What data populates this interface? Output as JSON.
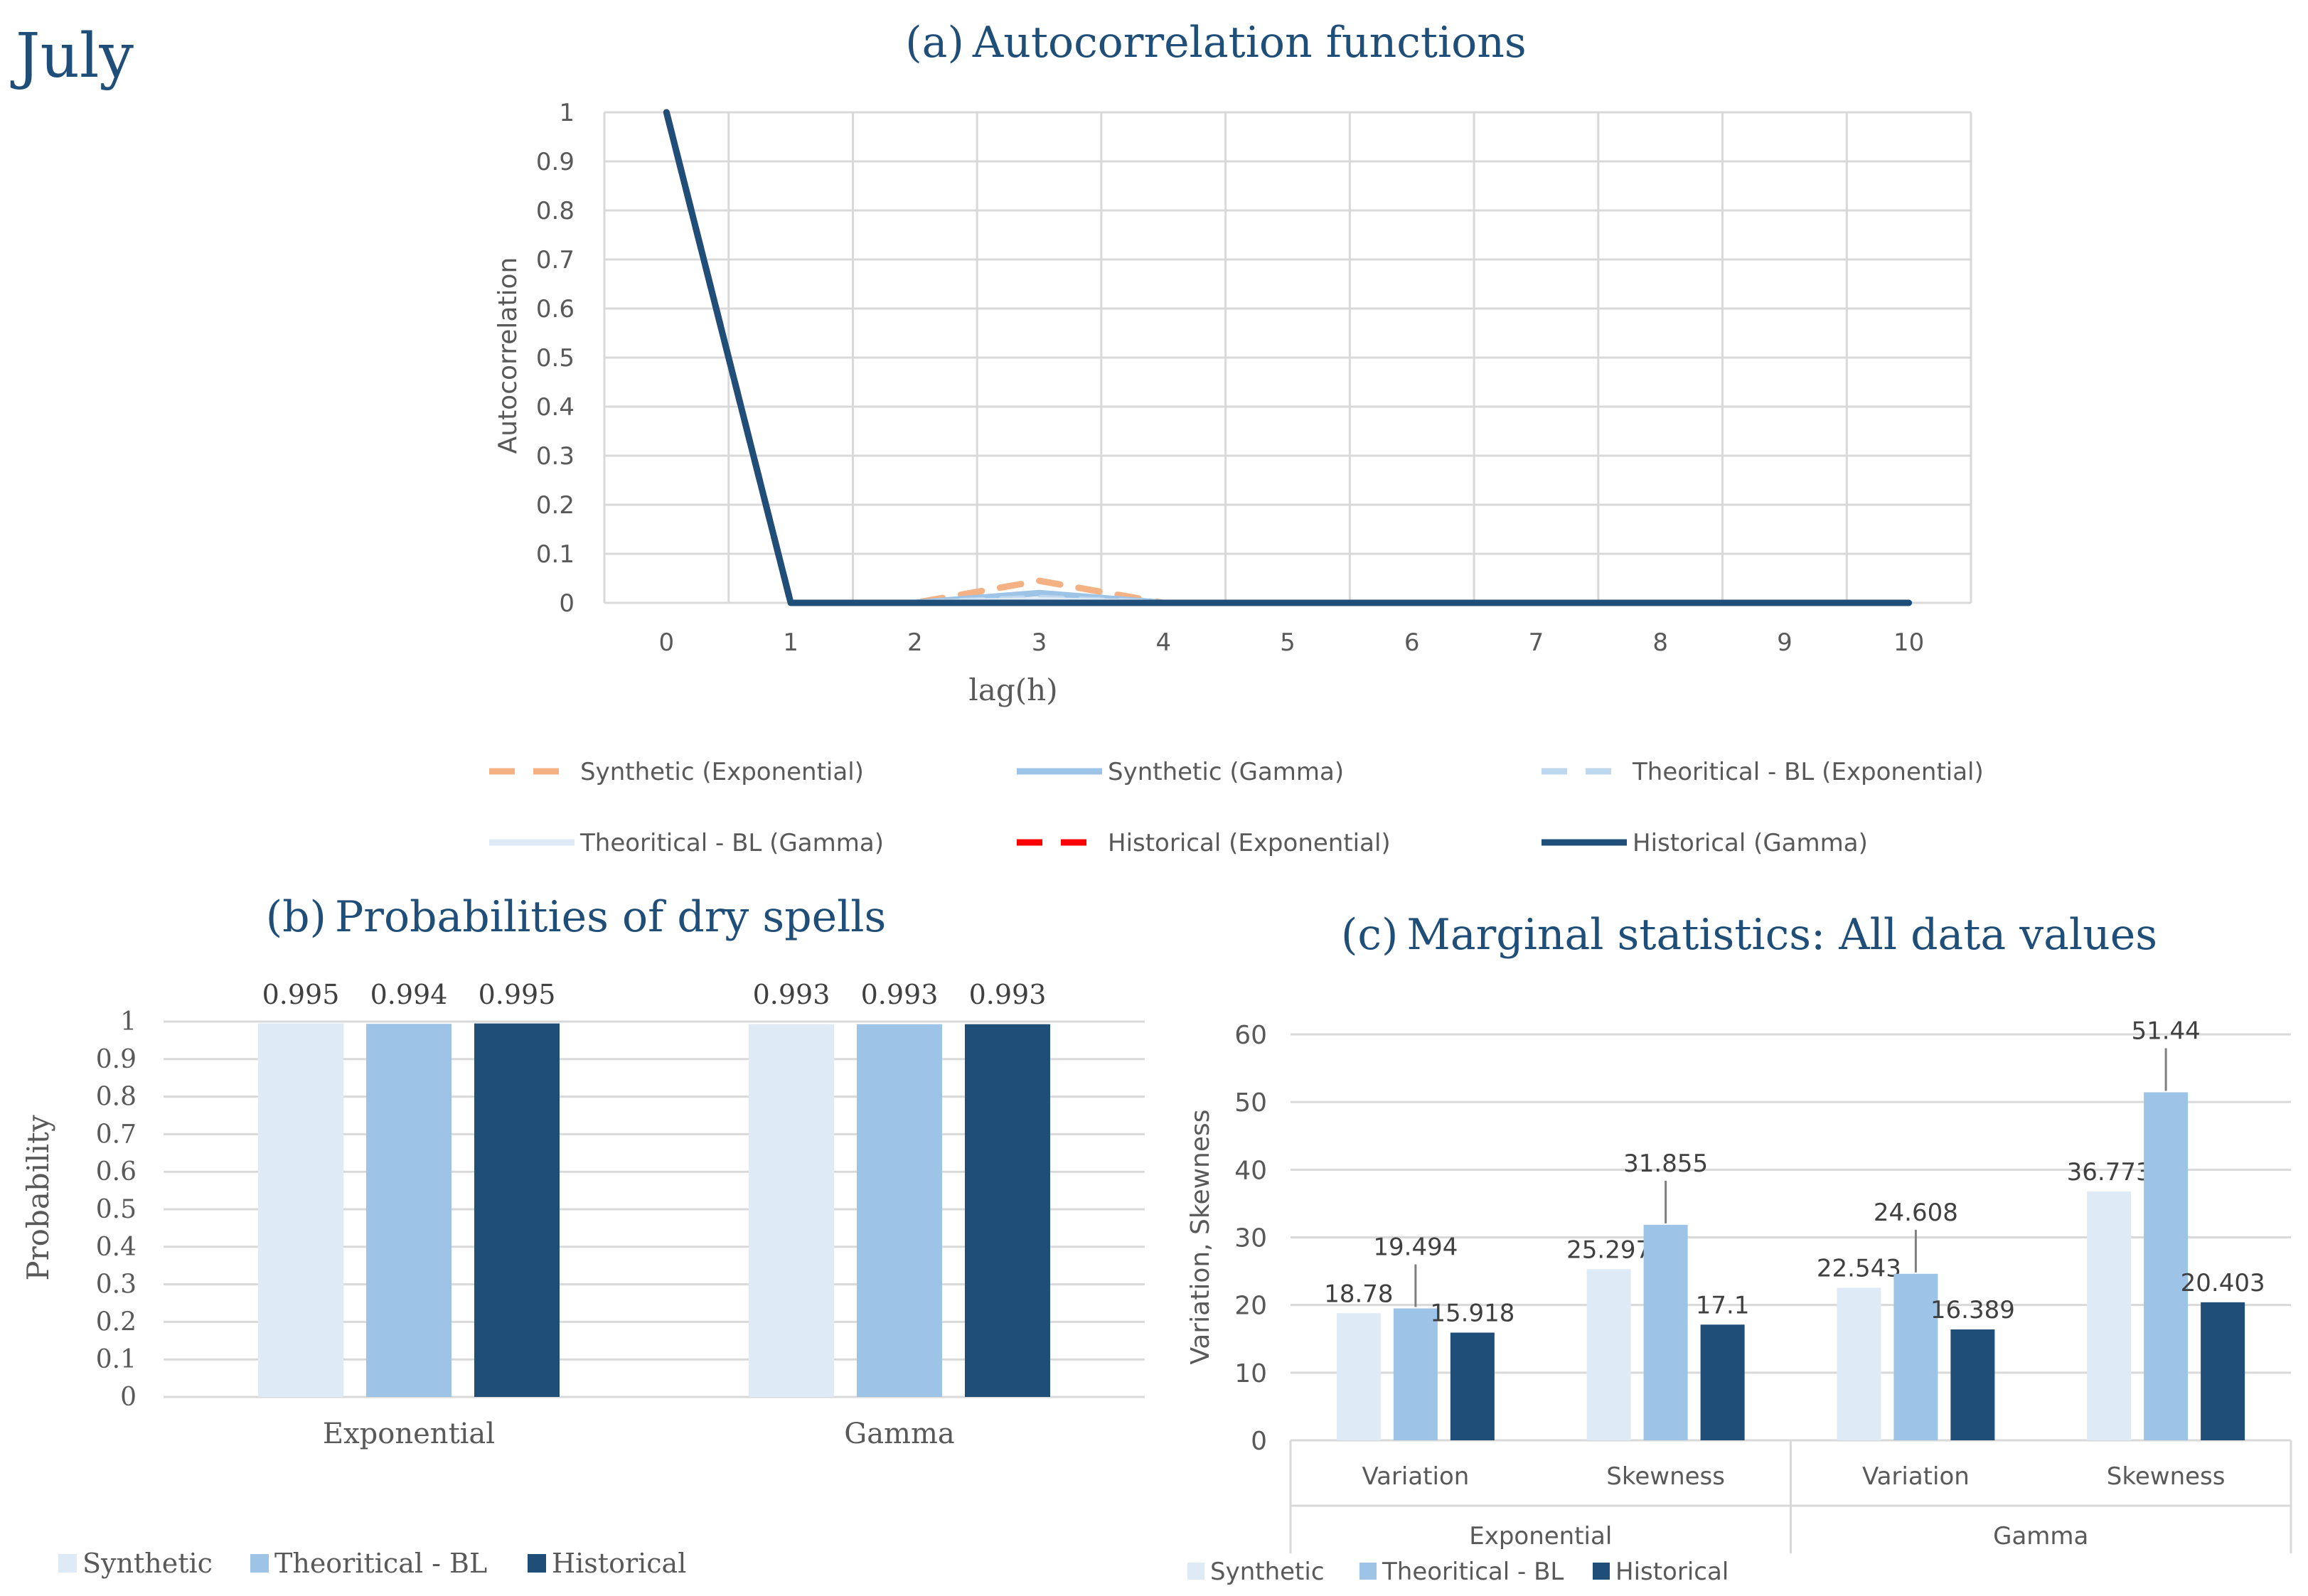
{
  "month_label": "July",
  "colors": {
    "title": "#1f4e79",
    "grid": "#d9d9d9",
    "axis_text": "#595959",
    "synthetic_exp": "#f4b183",
    "synthetic_gamma": "#9dc3e6",
    "theoretical_exp": "#bdd7ee",
    "theoretical_gamma": "#deebf7",
    "historical_exp": "#ff0000",
    "historical_gamma": "#1f4e79",
    "bar_synthetic": "#deebf7",
    "bar_theoretical": "#9dc3e6",
    "bar_historical": "#1f4e79"
  },
  "chart_data": [
    {
      "id": "a",
      "type": "line",
      "title_prefix": "(a)",
      "title": "Autocorrelation functions",
      "xlabel": "lag(h)",
      "ylabel": "Autocorrelation",
      "ylim": [
        0,
        1
      ],
      "yticks": [
        "0",
        "0.1",
        "0.2",
        "0.3",
        "0.4",
        "0.5",
        "0.6",
        "0.7",
        "0.8",
        "0.9",
        "1"
      ],
      "x": [
        0,
        1,
        2,
        3,
        4,
        5,
        6,
        7,
        8,
        9,
        10
      ],
      "grid": true,
      "legend_position": "bottom",
      "series": [
        {
          "name": "Synthetic (Exponential)",
          "style": "dashed",
          "color": "#f4b183",
          "values": [
            1,
            0,
            0,
            0.045,
            0,
            0,
            0,
            0,
            0,
            0,
            0
          ]
        },
        {
          "name": "Synthetic (Gamma)",
          "style": "solid",
          "color": "#9dc3e6",
          "values": [
            1,
            0,
            0,
            0.02,
            0,
            0,
            0,
            0,
            0,
            0,
            0
          ]
        },
        {
          "name": "Theoritical - BL (Exponential)",
          "style": "dashed",
          "color": "#bdd7ee",
          "values": [
            1,
            0,
            0,
            0.01,
            0,
            0,
            0,
            0,
            0,
            0,
            0
          ]
        },
        {
          "name": "Theoritical - BL (Gamma)",
          "style": "solid",
          "color": "#deebf7",
          "values": [
            1,
            0,
            0,
            0.005,
            0,
            0,
            0,
            0,
            0,
            0,
            0
          ]
        },
        {
          "name": "Historical (Exponential)",
          "style": "dashed",
          "color": "#ff0000",
          "values": [
            1,
            0,
            0,
            0,
            0,
            0,
            0,
            0,
            0,
            0,
            0
          ]
        },
        {
          "name": "Historical (Gamma)",
          "style": "solid",
          "color": "#1f4e79",
          "values": [
            1,
            0,
            0,
            0,
            0,
            0,
            0,
            0,
            0,
            0,
            0
          ]
        }
      ]
    },
    {
      "id": "b",
      "type": "bar",
      "title_prefix": "(b)",
      "title": "Probabilities of dry spells",
      "ylabel": "Probability",
      "ylim": [
        0,
        1
      ],
      "yticks": [
        "0",
        "0.1",
        "0.2",
        "0.3",
        "0.4",
        "0.5",
        "0.6",
        "0.7",
        "0.8",
        "0.9",
        "1"
      ],
      "categories": [
        "Exponential",
        "Gamma"
      ],
      "grid": true,
      "legend_position": "bottom",
      "series": [
        {
          "name": "Synthetic",
          "color": "#deebf7",
          "values": [
            0.995,
            0.993
          ],
          "labels": [
            "0.995",
            "0.993"
          ]
        },
        {
          "name": "Theoritical - BL",
          "color": "#9dc3e6",
          "values": [
            0.994,
            0.993
          ],
          "labels": [
            "0.994",
            "0.993"
          ]
        },
        {
          "name": "Historical",
          "color": "#1f4e79",
          "values": [
            0.995,
            0.993
          ],
          "labels": [
            "0.995",
            "0.993"
          ]
        }
      ]
    },
    {
      "id": "c",
      "type": "bar",
      "title_prefix": "(c)",
      "title": "Marginal statistics: All data values",
      "ylabel": "Variation, Skewness",
      "ylim": [
        0,
        60
      ],
      "yticks": [
        "0",
        "10",
        "20",
        "30",
        "40",
        "50",
        "60"
      ],
      "categories": [
        "Variation",
        "Skewness",
        "Variation",
        "Skewness"
      ],
      "groups": [
        "Exponential",
        "Gamma"
      ],
      "grid": true,
      "legend_position": "bottom",
      "series": [
        {
          "name": "Synthetic",
          "color": "#deebf7",
          "values": [
            18.78,
            25.297,
            22.543,
            36.773
          ],
          "labels": [
            "18.78",
            "25.297",
            "22.543",
            "36.773"
          ]
        },
        {
          "name": "Theoritical - BL",
          "color": "#9dc3e6",
          "values": [
            19.494,
            31.855,
            24.608,
            51.44
          ],
          "labels": [
            "19.494",
            "31.855",
            "24.608",
            "51.44"
          ]
        },
        {
          "name": "Historical",
          "color": "#1f4e79",
          "values": [
            15.918,
            17.1,
            16.389,
            20.403
          ],
          "labels": [
            "15.918",
            "17.1",
            "16.389",
            "20.403"
          ]
        }
      ]
    }
  ]
}
